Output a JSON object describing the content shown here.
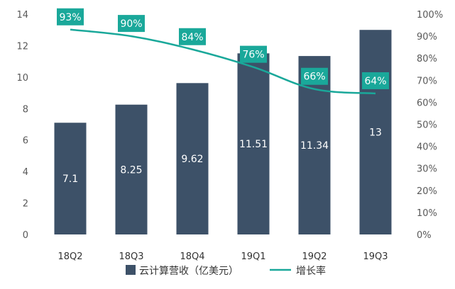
{
  "chart_data": {
    "type": "bar",
    "categories": [
      "18Q2",
      "18Q3",
      "18Q4",
      "19Q1",
      "19Q2",
      "19Q3"
    ],
    "series": [
      {
        "name": "云计算营收（亿美元）",
        "type": "bar",
        "axis": "left",
        "values": [
          7.1,
          8.25,
          9.62,
          11.51,
          11.34,
          13
        ],
        "labels": [
          "7.1",
          "8.25",
          "9.62",
          "11.51",
          "11.34",
          "13"
        ],
        "color": "#3d5168"
      },
      {
        "name": "增长率",
        "type": "line",
        "axis": "right",
        "values": [
          93,
          90,
          84,
          76,
          66,
          64
        ],
        "labels": [
          "93%",
          "90%",
          "84%",
          "76%",
          "66%",
          "64%"
        ],
        "color": "#1aa89a"
      }
    ],
    "y_left": {
      "min": 0,
      "max": 14,
      "ticks": [
        "0",
        "2",
        "4",
        "6",
        "8",
        "10",
        "12",
        "14"
      ]
    },
    "y_right": {
      "min": 0,
      "max": 100,
      "ticks": [
        "0%",
        "10%",
        "20%",
        "30%",
        "40%",
        "50%",
        "60%",
        "70%",
        "80%",
        "90%",
        "100%"
      ]
    },
    "grid": false,
    "legend_position": "bottom"
  }
}
